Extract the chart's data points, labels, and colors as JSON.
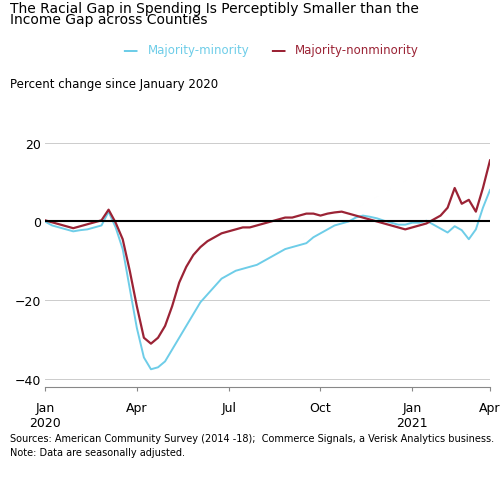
{
  "title_line1": "The Racial Gap in Spending Is Perceptibly Smaller than the",
  "title_line2": "Income Gap across Counties",
  "ylabel": "Percent change since January 2020",
  "legend": [
    "Majority-minority",
    "Majority-nonminority"
  ],
  "legend_colors": [
    "#6ecde8",
    "#9b2335"
  ],
  "source_text": "Sources: American Community Survey (2014 -18);  Commerce Signals, a Verisk Analytics business.",
  "note_text": "Note: Data are seasonally adjusted.",
  "xlim_start": 0,
  "xlim_end": 63,
  "ylim": [
    -42,
    22
  ],
  "yticks": [
    -40,
    -20,
    0,
    20
  ],
  "minority_data": [
    0.0,
    -1.0,
    -1.5,
    -2.0,
    -2.5,
    -2.2,
    -2.0,
    -1.5,
    -1.0,
    2.5,
    -1.5,
    -7.0,
    -17.0,
    -27.0,
    -34.5,
    -37.5,
    -37.0,
    -35.5,
    -32.5,
    -29.5,
    -26.5,
    -23.5,
    -20.5,
    -18.5,
    -16.5,
    -14.5,
    -13.5,
    -12.5,
    -12.0,
    -11.5,
    -11.0,
    -10.0,
    -9.0,
    -8.0,
    -7.0,
    -6.5,
    -6.0,
    -5.5,
    -4.0,
    -3.0,
    -2.0,
    -1.0,
    -0.5,
    0.0,
    1.0,
    1.5,
    1.2,
    0.8,
    0.2,
    -0.3,
    -0.8,
    -0.8,
    -0.3,
    -0.3,
    0.2,
    -0.8,
    -1.8,
    -2.8,
    -1.2,
    -2.2,
    -4.5,
    -2.0,
    3.5,
    8.0
  ],
  "nonminority_data": [
    0.3,
    -0.2,
    -0.7,
    -1.2,
    -1.7,
    -1.2,
    -0.7,
    -0.2,
    0.3,
    3.0,
    -0.3,
    -4.5,
    -12.5,
    -21.5,
    -29.5,
    -31.0,
    -29.5,
    -26.5,
    -21.5,
    -15.5,
    -11.5,
    -8.5,
    -6.5,
    -5.0,
    -4.0,
    -3.0,
    -2.5,
    -2.0,
    -1.5,
    -1.5,
    -1.0,
    -0.5,
    0.0,
    0.5,
    1.0,
    1.0,
    1.5,
    2.0,
    2.0,
    1.5,
    2.0,
    2.3,
    2.5,
    2.0,
    1.5,
    1.0,
    0.5,
    0.0,
    -0.5,
    -1.0,
    -1.5,
    -2.0,
    -1.5,
    -1.0,
    -0.5,
    0.5,
    1.5,
    3.5,
    8.5,
    4.5,
    5.5,
    2.5,
    8.5,
    15.5
  ],
  "xtick_positions": [
    0,
    13,
    26,
    39,
    52,
    63
  ],
  "xtick_labels_line1": [
    "Jan",
    "Apr",
    "Jul",
    "Oct",
    "Jan",
    "Apr"
  ],
  "xtick_labels_line2": [
    "2020",
    "",
    "",
    "",
    "2021",
    ""
  ]
}
